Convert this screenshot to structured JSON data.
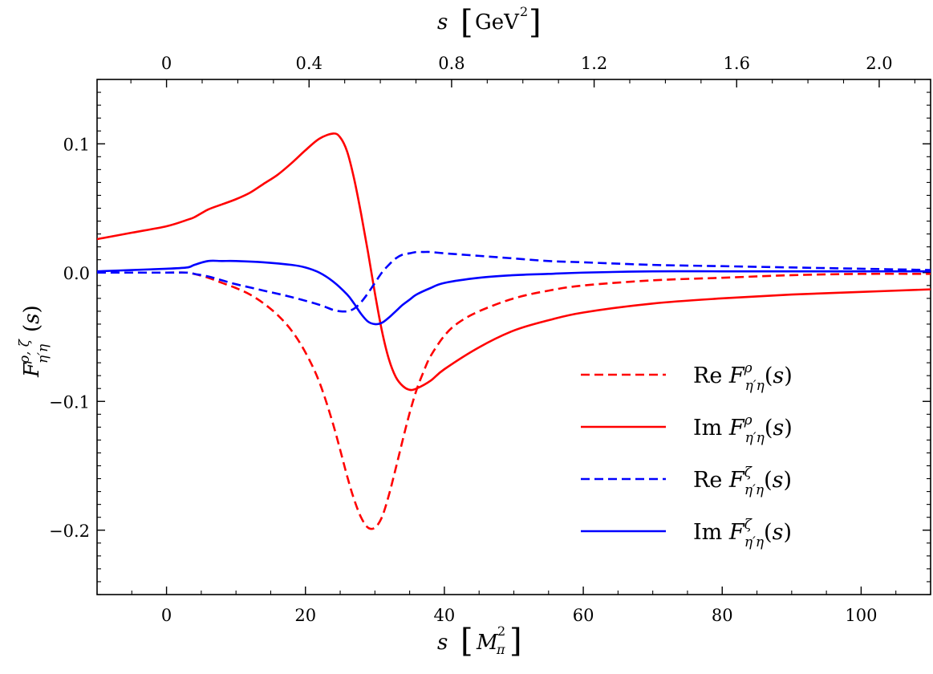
{
  "chart_data": {
    "type": "line",
    "xlabel": "s [M_π²]",
    "xlabel_top": "s [GeV²]",
    "ylabel": "F^{ρ,ζ}_{η'η}(s)",
    "xlim": [
      -10,
      110
    ],
    "ylim": [
      -0.25,
      0.15
    ],
    "grid": false,
    "legend_position": "lower-right",
    "x_ticks": [
      0,
      20,
      40,
      60,
      80,
      100
    ],
    "y_ticks": [
      -0.2,
      -0.1,
      0.0,
      0.1
    ],
    "x_tick_labels": [
      "0",
      "20",
      "40",
      "60",
      "80",
      "100"
    ],
    "y_tick_labels": [
      "−0.2",
      "−0.1",
      "0.0",
      "0.1"
    ],
    "top_ticks": [
      0,
      0.4,
      0.8,
      1.2,
      1.6,
      2.0
    ],
    "top_tick_labels": [
      "0",
      "0.4",
      "0.8",
      "1.2",
      "1.6",
      "2.0"
    ],
    "top_scale_msq_per_gev2": 51.3,
    "series": [
      {
        "name": "Re F^ρ_{η'η}(s)",
        "color": "#ff0000",
        "dash": "dashed",
        "x": [
          -10,
          -5,
          0,
          3,
          4,
          6,
          8,
          10,
          12,
          14,
          16,
          18,
          20,
          22,
          24,
          26,
          27,
          28,
          29,
          30,
          31,
          32,
          33,
          34,
          35,
          36,
          37,
          38,
          40,
          42,
          45,
          50,
          55,
          60,
          70,
          80,
          90,
          100,
          110
        ],
        "y": [
          0.0,
          0.0,
          0.0,
          0.0,
          -0.001,
          -0.004,
          -0.008,
          -0.012,
          -0.017,
          -0.024,
          -0.033,
          -0.045,
          -0.062,
          -0.085,
          -0.118,
          -0.158,
          -0.176,
          -0.19,
          -0.198,
          -0.198,
          -0.19,
          -0.173,
          -0.152,
          -0.13,
          -0.109,
          -0.091,
          -0.077,
          -0.065,
          -0.049,
          -0.039,
          -0.03,
          -0.02,
          -0.014,
          -0.01,
          -0.006,
          -0.004,
          -0.002,
          -0.001,
          -0.001
        ]
      },
      {
        "name": "Im F^ρ_{η'η}(s)",
        "color": "#ff0000",
        "dash": "solid",
        "x": [
          -10,
          -5,
          0,
          3,
          4,
          6,
          8,
          10,
          12,
          14,
          16,
          18,
          20,
          22,
          24,
          25,
          26,
          27,
          28,
          29,
          30,
          31,
          32,
          33,
          34,
          35,
          36,
          38,
          40,
          45,
          50,
          55,
          60,
          70,
          80,
          90,
          100,
          110
        ],
        "y": [
          0.026,
          0.031,
          0.036,
          0.041,
          0.043,
          0.049,
          0.053,
          0.057,
          0.062,
          0.069,
          0.076,
          0.085,
          0.095,
          0.104,
          0.108,
          0.105,
          0.094,
          0.073,
          0.046,
          0.016,
          -0.016,
          -0.045,
          -0.067,
          -0.081,
          -0.088,
          -0.091,
          -0.09,
          -0.084,
          -0.075,
          -0.058,
          -0.045,
          -0.037,
          -0.031,
          -0.024,
          -0.02,
          -0.017,
          -0.015,
          -0.013
        ]
      },
      {
        "name": "Re F^ζ_{η'η}(s)",
        "color": "#0000ff",
        "dash": "dashed",
        "x": [
          -10,
          -5,
          0,
          3,
          4,
          6,
          8,
          10,
          14,
          18,
          22,
          24,
          25,
          26,
          27,
          28,
          29,
          30,
          31,
          32,
          33,
          34,
          35,
          36,
          37,
          38,
          40,
          45,
          50,
          55,
          60,
          70,
          80,
          90,
          100,
          110
        ],
        "y": [
          0.0,
          0.0,
          0.0,
          0.0,
          -0.001,
          -0.003,
          -0.006,
          -0.009,
          -0.014,
          -0.019,
          -0.025,
          -0.029,
          -0.03,
          -0.03,
          -0.028,
          -0.023,
          -0.016,
          -0.008,
          0.0,
          0.006,
          0.011,
          0.014,
          0.015,
          0.016,
          0.016,
          0.016,
          0.015,
          0.013,
          0.011,
          0.009,
          0.008,
          0.006,
          0.005,
          0.004,
          0.003,
          0.002
        ]
      },
      {
        "name": "Im F^ζ_{η'η}(s)",
        "color": "#0000ff",
        "dash": "solid",
        "x": [
          -10,
          -5,
          0,
          3,
          4,
          6,
          8,
          10,
          14,
          18,
          20,
          22,
          24,
          26,
          27,
          28,
          29,
          30,
          31,
          32,
          33,
          34,
          35,
          36,
          38,
          40,
          45,
          50,
          55,
          60,
          70,
          80,
          90,
          100,
          110
        ],
        "y": [
          0.001,
          0.002,
          0.003,
          0.004,
          0.006,
          0.009,
          0.009,
          0.009,
          0.008,
          0.006,
          0.004,
          0.0,
          -0.007,
          -0.017,
          -0.024,
          -0.032,
          -0.038,
          -0.04,
          -0.039,
          -0.035,
          -0.03,
          -0.025,
          -0.021,
          -0.017,
          -0.012,
          -0.008,
          -0.004,
          -0.002,
          -0.001,
          0.0,
          0.001,
          0.001,
          0.001,
          0.001,
          0.001
        ]
      }
    ]
  }
}
